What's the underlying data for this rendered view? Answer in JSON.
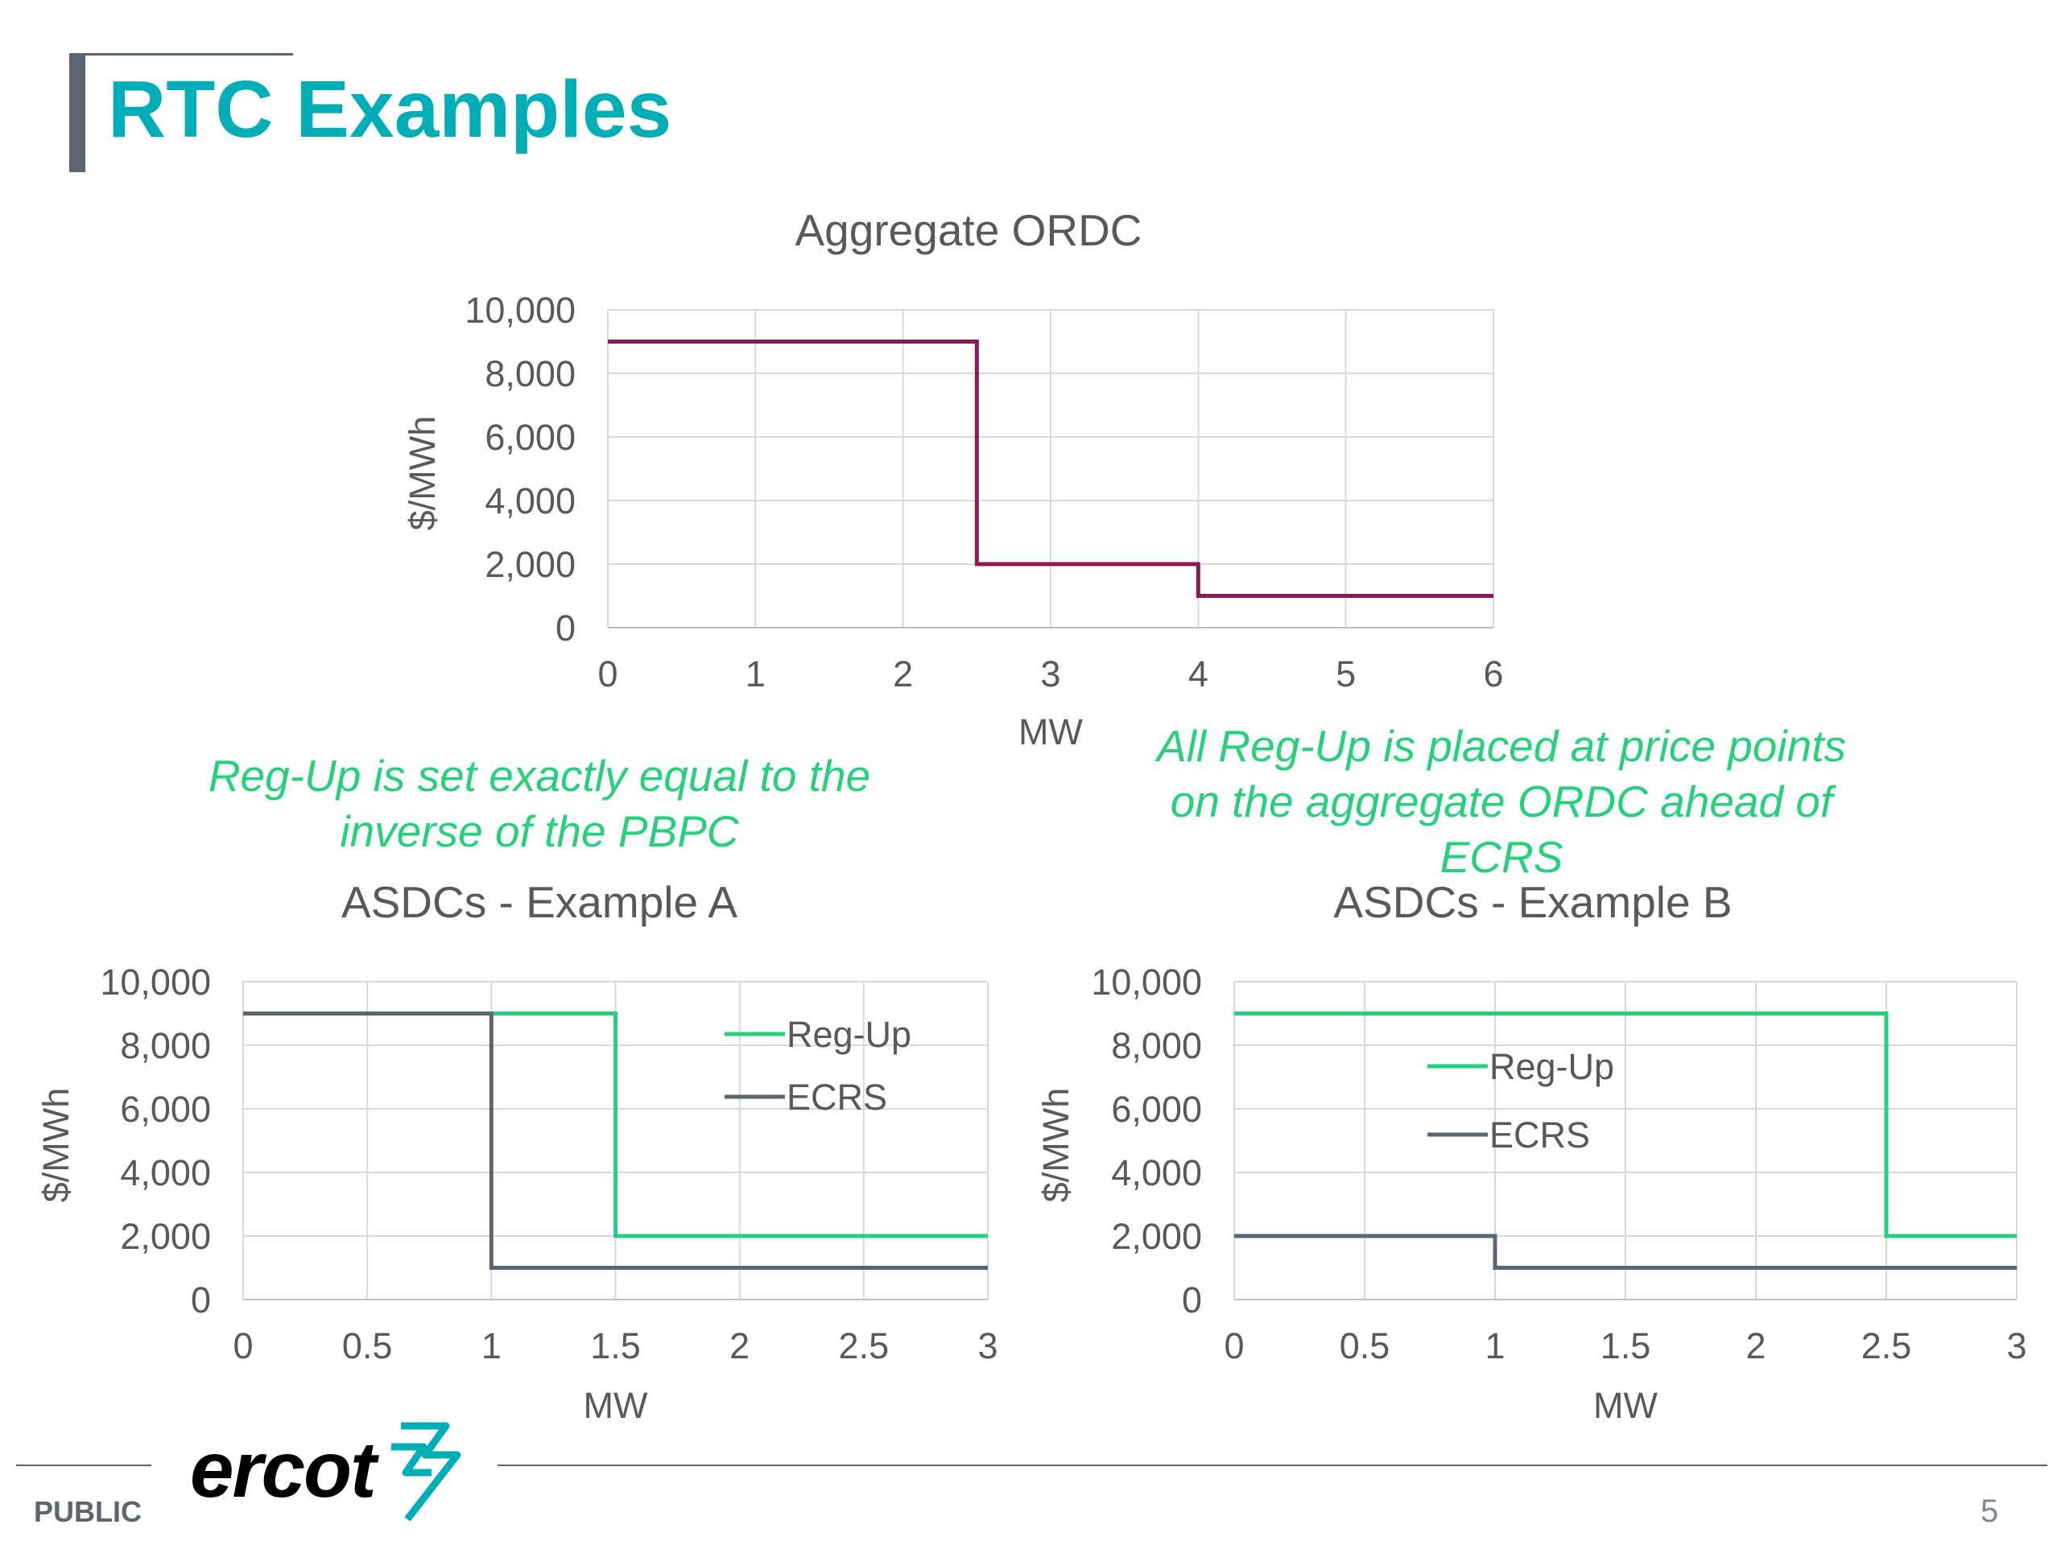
{
  "slide": {
    "title": "RTC Examples",
    "footer_label": "PUBLIC",
    "page_number": "5",
    "logo_text": "ercot"
  },
  "notes": {
    "left": [
      "Reg-Up is set exactly equal to the",
      "inverse of the PBPC"
    ],
    "right": [
      "All Reg-Up is placed at price points",
      "on the aggregate ORDC ahead of",
      "ECRS"
    ]
  },
  "colors": {
    "title": "#00aeb7",
    "note": "#26d07c",
    "ordc_line": "#8b1a5a",
    "reg_up": "#26d07c",
    "ecrs": "#5b6670",
    "gray": "#5b6670",
    "grid": "#d9d9d9",
    "axis_text": "#595959"
  },
  "chart_data": [
    {
      "type": "line",
      "title": "Aggregate ORDC",
      "xlabel": "MW",
      "ylabel": "$/MWh",
      "xlim": [
        0,
        6
      ],
      "ylim": [
        0,
        10000
      ],
      "x_ticks": [
        0,
        1,
        2,
        3,
        4,
        5,
        6
      ],
      "x_tick_labels": [
        "0",
        "1",
        "2",
        "3",
        "4",
        "5",
        "6"
      ],
      "y_ticks": [
        0,
        2000,
        4000,
        6000,
        8000,
        10000
      ],
      "y_tick_labels": [
        "0",
        "2,000",
        "4,000",
        "6,000",
        "8,000",
        "10,000"
      ],
      "grid": true,
      "legend": "none",
      "series": [
        {
          "color": "#8b1a5a",
          "points": [
            [
              0,
              9000
            ],
            [
              2.5,
              9000
            ],
            [
              2.5,
              2000
            ],
            [
              4,
              2000
            ],
            [
              4,
              1000
            ],
            [
              6,
              1000
            ]
          ]
        }
      ]
    },
    {
      "type": "line",
      "title": "ASDCs - Example A",
      "xlabel": "MW",
      "ylabel": "$/MWh",
      "xlim": [
        0,
        3
      ],
      "ylim": [
        0,
        10000
      ],
      "x_ticks": [
        0,
        0.5,
        1,
        1.5,
        2,
        2.5,
        3
      ],
      "x_tick_labels": [
        "0",
        "0.5",
        "1",
        "1.5",
        "2",
        "2.5",
        "3"
      ],
      "y_ticks": [
        0,
        2000,
        4000,
        6000,
        8000,
        10000
      ],
      "y_tick_labels": [
        "0",
        "2,000",
        "4,000",
        "6,000",
        "8,000",
        "10,000"
      ],
      "grid": true,
      "legend": "top-right",
      "series": [
        {
          "name": "Reg-Up",
          "color": "#26d07c",
          "points": [
            [
              0,
              9000
            ],
            [
              1.5,
              9000
            ],
            [
              1.5,
              2000
            ],
            [
              3,
              2000
            ]
          ]
        },
        {
          "name": "ECRS",
          "color": "#5b6670",
          "points": [
            [
              0,
              9000
            ],
            [
              1,
              9000
            ],
            [
              1,
              1000
            ],
            [
              3,
              1000
            ]
          ]
        }
      ]
    },
    {
      "type": "line",
      "title": "ASDCs - Example B",
      "xlabel": "MW",
      "ylabel": "$/MWh",
      "xlim": [
        0,
        3
      ],
      "ylim": [
        0,
        10000
      ],
      "x_ticks": [
        0,
        0.5,
        1,
        1.5,
        2,
        2.5,
        3
      ],
      "x_tick_labels": [
        "0",
        "0.5",
        "1",
        "1.5",
        "2",
        "2.5",
        "3"
      ],
      "y_ticks": [
        0,
        2000,
        4000,
        6000,
        8000,
        10000
      ],
      "y_tick_labels": [
        "0",
        "2,000",
        "4,000",
        "6,000",
        "8,000",
        "10,000"
      ],
      "grid": true,
      "legend": "center",
      "series": [
        {
          "name": "Reg-Up",
          "color": "#26d07c",
          "points": [
            [
              0,
              9000
            ],
            [
              2.5,
              9000
            ],
            [
              2.5,
              2000
            ],
            [
              3,
              2000
            ]
          ]
        },
        {
          "name": "ECRS",
          "color": "#5b6670",
          "points": [
            [
              0,
              2000
            ],
            [
              1,
              2000
            ],
            [
              1,
              1000
            ],
            [
              3,
              1000
            ]
          ]
        }
      ]
    }
  ]
}
